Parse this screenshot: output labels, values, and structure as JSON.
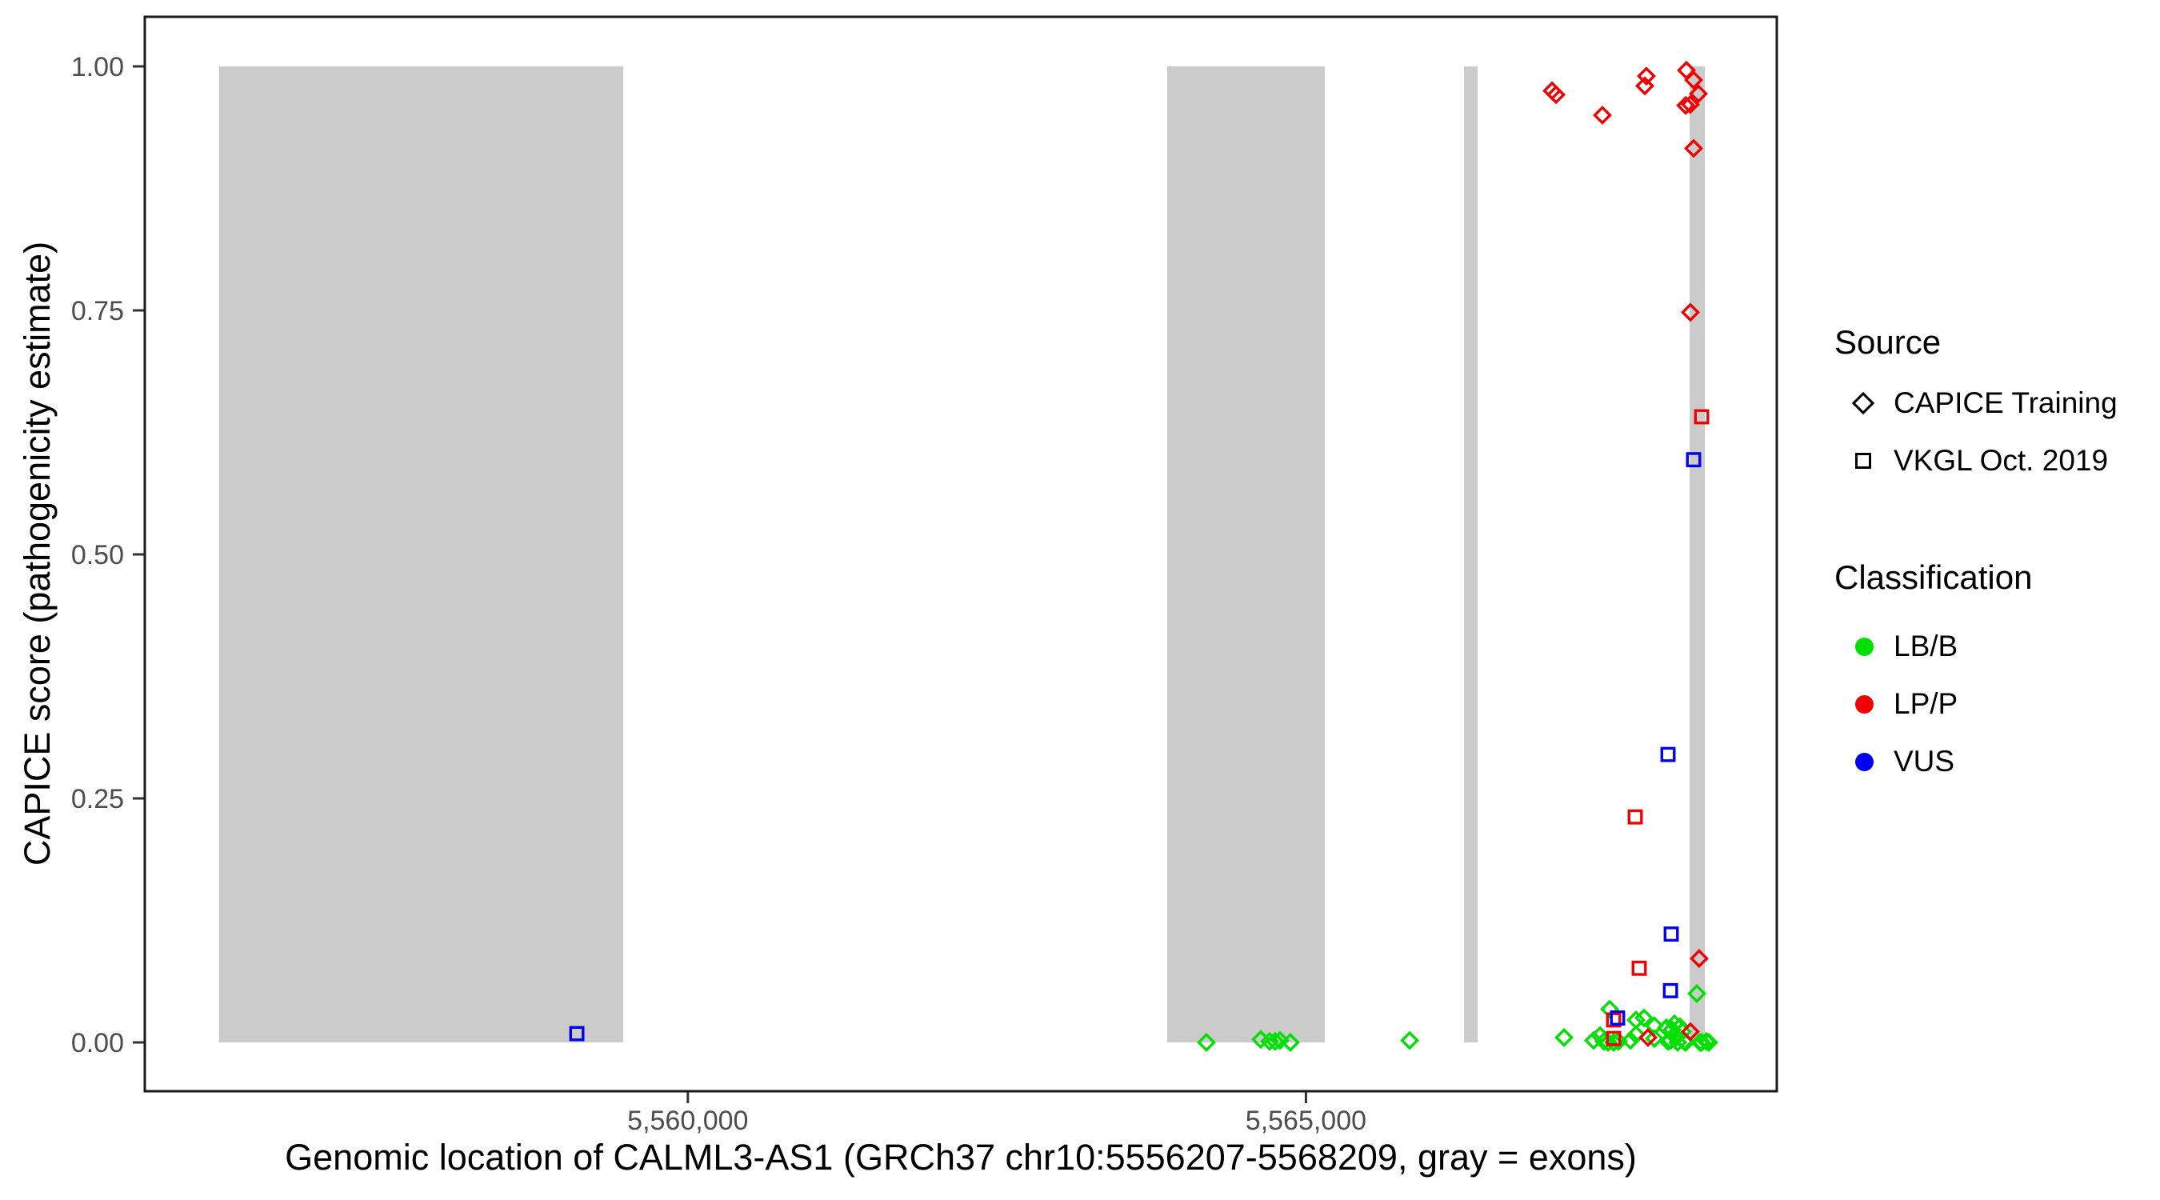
{
  "figure": {
    "xlabel": "Genomic location of CALML3-AS1 (GRCh37 chr10:5556207-5568209, gray = exons)",
    "ylabel": "CAPICE score (pathogenicity estimate)"
  },
  "legend": {
    "source": {
      "title": "Source",
      "items": [
        {
          "label": "CAPICE Training",
          "shape": "diamond"
        },
        {
          "label": "VKGL Oct. 2019",
          "shape": "square"
        }
      ]
    },
    "classification": {
      "title": "Classification",
      "items": [
        {
          "label": "LB/B",
          "color": "#00E000"
        },
        {
          "label": "LP/P",
          "color": "#F00000"
        },
        {
          "label": "VUS",
          "color": "#0000F0"
        }
      ]
    }
  },
  "chart_data": {
    "type": "scatter",
    "title": "",
    "xlabel": "Genomic location of CALML3-AS1 (GRCh37 chr10:5556207-5568209, gray = exons)",
    "ylabel": "CAPICE score (pathogenicity estimate)",
    "grid": false,
    "legend_position": "right",
    "x_axis": {
      "domain": [
        5555607,
        5568809
      ],
      "ticks": [
        {
          "value": 5560000,
          "label": "5,560,000"
        },
        {
          "value": 5565000,
          "label": "5,565,000"
        }
      ]
    },
    "y_axis": {
      "domain": [
        -0.05,
        1.0508
      ],
      "ticks": [
        {
          "value": 0.0,
          "label": "0.00"
        },
        {
          "value": 0.25,
          "label": "0.25"
        },
        {
          "value": 0.5,
          "label": "0.50"
        },
        {
          "value": 0.75,
          "label": "0.75"
        },
        {
          "value": 1.0,
          "label": "1.00"
        }
      ]
    },
    "exon_color": "#CBCBCB",
    "exons": [
      [
        5556207,
        5559477
      ],
      [
        5563878,
        5565153
      ],
      [
        5566279,
        5566389
      ],
      [
        5568104,
        5568227
      ]
    ],
    "classification_colors": {
      "LB/B": "#00E000",
      "LP/P": "#F00000",
      "VUS": "#0000F0"
    },
    "series": [
      {
        "name": "CAPICE Training / LB/B",
        "source": "CAPICE Training",
        "classification": "LB/B",
        "shape": "diamond",
        "points": [
          [
            5564195,
            0.0
          ],
          [
            5564635,
            0.003
          ],
          [
            5564706,
            0.001
          ],
          [
            5564751,
            0.001
          ],
          [
            5564790,
            0.002
          ],
          [
            5564874,
            0.0
          ],
          [
            5565839,
            0.002
          ],
          [
            5567088,
            0.005
          ],
          [
            5567327,
            0.002
          ],
          [
            5567379,
            0.007
          ],
          [
            5567411,
            0.001
          ],
          [
            5567444,
            0.0
          ],
          [
            5567457,
            0.034
          ],
          [
            5567489,
            0.0
          ],
          [
            5567528,
            0.001
          ],
          [
            5567625,
            0.002
          ],
          [
            5567670,
            0.023
          ],
          [
            5567670,
            0.008
          ],
          [
            5567735,
            0.025
          ],
          [
            5567819,
            0.017
          ],
          [
            5567819,
            0.004
          ],
          [
            5567916,
            0.015
          ],
          [
            5567929,
            0.001
          ],
          [
            5567949,
            0.002
          ],
          [
            5567962,
            0.013
          ],
          [
            5567981,
            0.019
          ],
          [
            5567994,
            0.005
          ],
          [
            5568007,
            0.0
          ],
          [
            5568026,
            0.016
          ],
          [
            5568046,
            0.011
          ],
          [
            5568059,
            0.001
          ],
          [
            5568072,
            0.0
          ],
          [
            5568162,
            0.05
          ],
          [
            5568188,
            0.0
          ],
          [
            5568201,
            0.0
          ],
          [
            5568240,
            0.001
          ],
          [
            5568259,
            0.0
          ]
        ]
      },
      {
        "name": "CAPICE Training / LP/P",
        "source": "CAPICE Training",
        "classification": "LP/P",
        "shape": "diamond",
        "points": [
          [
            5566991,
            0.975
          ],
          [
            5567023,
            0.971
          ],
          [
            5567398,
            0.95
          ],
          [
            5567741,
            0.98
          ],
          [
            5567754,
            0.99
          ],
          [
            5568078,
            0.996
          ],
          [
            5568136,
            0.986
          ],
          [
            5568175,
            0.972
          ],
          [
            5568110,
            0.961
          ],
          [
            5568072,
            0.96
          ],
          [
            5568136,
            0.916
          ],
          [
            5568110,
            0.748
          ],
          [
            5568181,
            0.086
          ],
          [
            5568110,
            0.011
          ],
          [
            5567767,
            0.005
          ]
        ]
      },
      {
        "name": "VKGL Oct. 2019 / LP/P",
        "source": "VKGL Oct. 2019",
        "classification": "LP/P",
        "shape": "square",
        "points": [
          [
            5568201,
            0.641
          ],
          [
            5567664,
            0.231
          ],
          [
            5567696,
            0.076
          ],
          [
            5567489,
            0.023
          ],
          [
            5567489,
            0.004
          ]
        ]
      },
      {
        "name": "VKGL Oct. 2019 / VUS",
        "source": "VKGL Oct. 2019",
        "classification": "VUS",
        "shape": "square",
        "points": [
          [
            5559102,
            0.009
          ],
          [
            5568136,
            0.597
          ],
          [
            5567929,
            0.295
          ],
          [
            5567955,
            0.111
          ],
          [
            5567949,
            0.053
          ],
          [
            5567521,
            0.025
          ]
        ]
      }
    ]
  }
}
